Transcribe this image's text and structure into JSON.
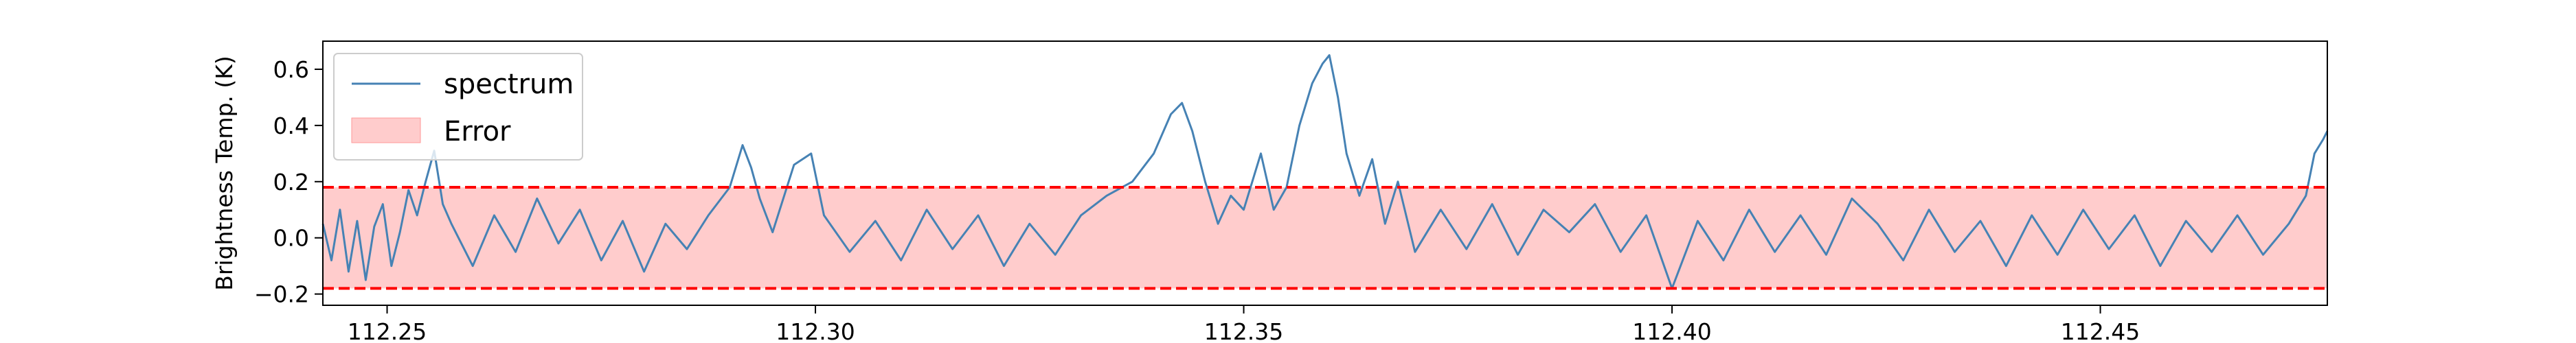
{
  "chart_data": {
    "type": "line",
    "title": "",
    "xlabel": "",
    "ylabel": "Brightness Temp. (K)",
    "xlim": [
      112.2425,
      112.4765
    ],
    "ylim": [
      -0.24,
      0.7
    ],
    "x_ticks": [
      112.25,
      112.3,
      112.35,
      112.4,
      112.45
    ],
    "x_tick_labels": [
      "112.25",
      "112.30",
      "112.35",
      "112.40",
      "112.45"
    ],
    "y_ticks": [
      -0.2,
      0.0,
      0.2,
      0.4,
      0.6
    ],
    "y_tick_labels": [
      "−0.2",
      "0.0",
      "0.2",
      "0.4",
      "0.6"
    ],
    "grid": false,
    "legend": {
      "placement": "upper-left",
      "entries": [
        {
          "label": "spectrum",
          "kind": "line",
          "color": "#4682b4"
        },
        {
          "label": "Error",
          "kind": "patch",
          "color": "#ff9999"
        }
      ]
    },
    "series": [
      {
        "name": "spectrum",
        "kind": "line",
        "color": "#4682b4",
        "points": [
          [
            112.2425,
            0.05
          ],
          [
            112.2435,
            -0.08
          ],
          [
            112.2445,
            0.1
          ],
          [
            112.2455,
            -0.12
          ],
          [
            112.2465,
            0.06
          ],
          [
            112.2475,
            -0.15
          ],
          [
            112.2485,
            0.04
          ],
          [
            112.2495,
            0.12
          ],
          [
            112.2505,
            -0.1
          ],
          [
            112.2515,
            0.02
          ],
          [
            112.2525,
            0.17
          ],
          [
            112.2535,
            0.08
          ],
          [
            112.2545,
            0.2
          ],
          [
            112.2555,
            0.31
          ],
          [
            112.2565,
            0.12
          ],
          [
            112.2575,
            0.05
          ],
          [
            112.26,
            -0.1
          ],
          [
            112.2625,
            0.08
          ],
          [
            112.265,
            -0.05
          ],
          [
            112.2675,
            0.14
          ],
          [
            112.27,
            -0.02
          ],
          [
            112.2725,
            0.1
          ],
          [
            112.275,
            -0.08
          ],
          [
            112.2775,
            0.06
          ],
          [
            112.28,
            -0.12
          ],
          [
            112.2825,
            0.05
          ],
          [
            112.285,
            -0.04
          ],
          [
            112.2875,
            0.08
          ],
          [
            112.29,
            0.18
          ],
          [
            112.2915,
            0.33
          ],
          [
            112.2925,
            0.25
          ],
          [
            112.2935,
            0.14
          ],
          [
            112.295,
            0.02
          ],
          [
            112.2975,
            0.26
          ],
          [
            112.2995,
            0.3
          ],
          [
            112.301,
            0.08
          ],
          [
            112.304,
            -0.05
          ],
          [
            112.307,
            0.06
          ],
          [
            112.31,
            -0.08
          ],
          [
            112.313,
            0.1
          ],
          [
            112.316,
            -0.04
          ],
          [
            112.319,
            0.08
          ],
          [
            112.322,
            -0.1
          ],
          [
            112.325,
            0.05
          ],
          [
            112.328,
            -0.06
          ],
          [
            112.331,
            0.08
          ],
          [
            112.334,
            0.15
          ],
          [
            112.337,
            0.2
          ],
          [
            112.3395,
            0.3
          ],
          [
            112.3415,
            0.44
          ],
          [
            112.3428,
            0.48
          ],
          [
            112.344,
            0.38
          ],
          [
            112.3455,
            0.2
          ],
          [
            112.347,
            0.05
          ],
          [
            112.3485,
            0.15
          ],
          [
            112.35,
            0.1
          ],
          [
            112.352,
            0.3
          ],
          [
            112.3535,
            0.1
          ],
          [
            112.355,
            0.18
          ],
          [
            112.3565,
            0.4
          ],
          [
            112.358,
            0.55
          ],
          [
            112.3592,
            0.62
          ],
          [
            112.36,
            0.65
          ],
          [
            112.361,
            0.5
          ],
          [
            112.362,
            0.3
          ],
          [
            112.3635,
            0.15
          ],
          [
            112.365,
            0.28
          ],
          [
            112.3665,
            0.05
          ],
          [
            112.368,
            0.2
          ],
          [
            112.37,
            -0.05
          ],
          [
            112.373,
            0.1
          ],
          [
            112.376,
            -0.04
          ],
          [
            112.379,
            0.12
          ],
          [
            112.382,
            -0.06
          ],
          [
            112.385,
            0.1
          ],
          [
            112.388,
            0.02
          ],
          [
            112.391,
            0.12
          ],
          [
            112.394,
            -0.05
          ],
          [
            112.397,
            0.08
          ],
          [
            112.4,
            -0.18
          ],
          [
            112.403,
            0.06
          ],
          [
            112.406,
            -0.08
          ],
          [
            112.409,
            0.1
          ],
          [
            112.412,
            -0.05
          ],
          [
            112.415,
            0.08
          ],
          [
            112.418,
            -0.06
          ],
          [
            112.421,
            0.14
          ],
          [
            112.424,
            0.05
          ],
          [
            112.427,
            -0.08
          ],
          [
            112.43,
            0.1
          ],
          [
            112.433,
            -0.05
          ],
          [
            112.436,
            0.06
          ],
          [
            112.439,
            -0.1
          ],
          [
            112.442,
            0.08
          ],
          [
            112.445,
            -0.06
          ],
          [
            112.448,
            0.1
          ],
          [
            112.451,
            -0.04
          ],
          [
            112.454,
            0.08
          ],
          [
            112.457,
            -0.1
          ],
          [
            112.46,
            0.06
          ],
          [
            112.463,
            -0.05
          ],
          [
            112.466,
            0.08
          ],
          [
            112.469,
            -0.06
          ],
          [
            112.472,
            0.05
          ],
          [
            112.474,
            0.15
          ],
          [
            112.475,
            0.3
          ],
          [
            112.476,
            0.35
          ],
          [
            112.4765,
            0.38
          ]
        ]
      },
      {
        "name": "Error",
        "kind": "band",
        "color": "#ff9999",
        "lower": -0.18,
        "upper": 0.18
      }
    ],
    "reference_lines": [
      {
        "axis": "y",
        "value": 0.18,
        "style": "dashed",
        "color": "#ff0000"
      },
      {
        "axis": "y",
        "value": -0.18,
        "style": "dashed",
        "color": "#ff0000"
      }
    ]
  }
}
